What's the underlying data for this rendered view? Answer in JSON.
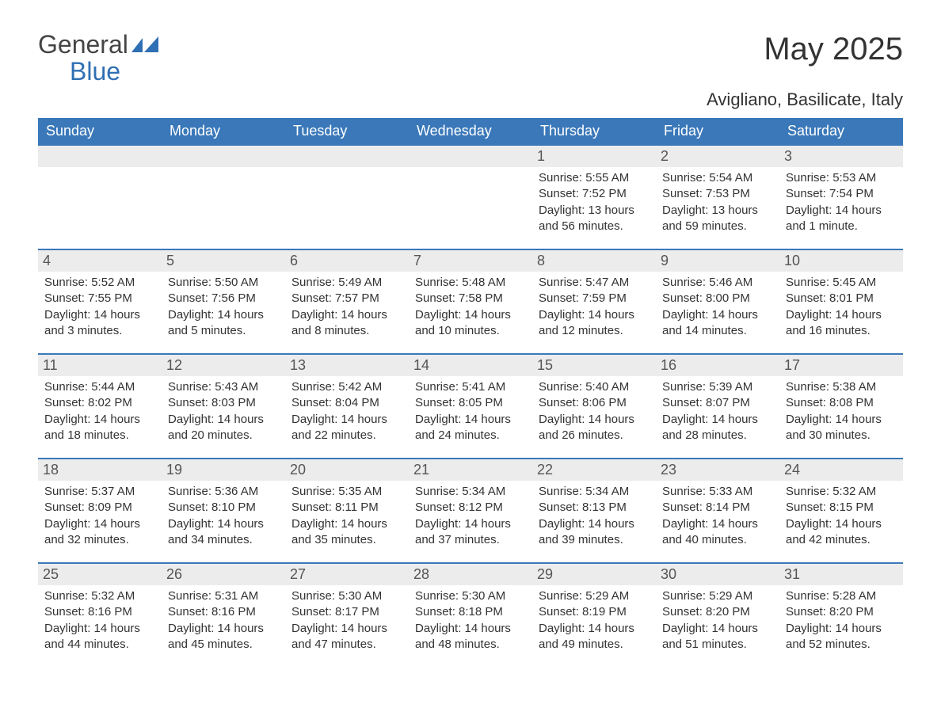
{
  "logo": {
    "general": "General",
    "blue": "Blue"
  },
  "title": "May 2025",
  "location": "Avigliano, Basilicate, Italy",
  "colors": {
    "header_bg": "#3a78b9",
    "header_text": "#ffffff",
    "daynum_bg": "#ececec",
    "body_text": "#333333",
    "accent_blue": "#2f6fb3"
  },
  "day_names": [
    "Sunday",
    "Monday",
    "Tuesday",
    "Wednesday",
    "Thursday",
    "Friday",
    "Saturday"
  ],
  "weeks": [
    [
      {
        "n": "",
        "sunrise": "",
        "sunset": "",
        "daylight": ""
      },
      {
        "n": "",
        "sunrise": "",
        "sunset": "",
        "daylight": ""
      },
      {
        "n": "",
        "sunrise": "",
        "sunset": "",
        "daylight": ""
      },
      {
        "n": "",
        "sunrise": "",
        "sunset": "",
        "daylight": ""
      },
      {
        "n": "1",
        "sunrise": "Sunrise: 5:55 AM",
        "sunset": "Sunset: 7:52 PM",
        "daylight": "Daylight: 13 hours and 56 minutes."
      },
      {
        "n": "2",
        "sunrise": "Sunrise: 5:54 AM",
        "sunset": "Sunset: 7:53 PM",
        "daylight": "Daylight: 13 hours and 59 minutes."
      },
      {
        "n": "3",
        "sunrise": "Sunrise: 5:53 AM",
        "sunset": "Sunset: 7:54 PM",
        "daylight": "Daylight: 14 hours and 1 minute."
      }
    ],
    [
      {
        "n": "4",
        "sunrise": "Sunrise: 5:52 AM",
        "sunset": "Sunset: 7:55 PM",
        "daylight": "Daylight: 14 hours and 3 minutes."
      },
      {
        "n": "5",
        "sunrise": "Sunrise: 5:50 AM",
        "sunset": "Sunset: 7:56 PM",
        "daylight": "Daylight: 14 hours and 5 minutes."
      },
      {
        "n": "6",
        "sunrise": "Sunrise: 5:49 AM",
        "sunset": "Sunset: 7:57 PM",
        "daylight": "Daylight: 14 hours and 8 minutes."
      },
      {
        "n": "7",
        "sunrise": "Sunrise: 5:48 AM",
        "sunset": "Sunset: 7:58 PM",
        "daylight": "Daylight: 14 hours and 10 minutes."
      },
      {
        "n": "8",
        "sunrise": "Sunrise: 5:47 AM",
        "sunset": "Sunset: 7:59 PM",
        "daylight": "Daylight: 14 hours and 12 minutes."
      },
      {
        "n": "9",
        "sunrise": "Sunrise: 5:46 AM",
        "sunset": "Sunset: 8:00 PM",
        "daylight": "Daylight: 14 hours and 14 minutes."
      },
      {
        "n": "10",
        "sunrise": "Sunrise: 5:45 AM",
        "sunset": "Sunset: 8:01 PM",
        "daylight": "Daylight: 14 hours and 16 minutes."
      }
    ],
    [
      {
        "n": "11",
        "sunrise": "Sunrise: 5:44 AM",
        "sunset": "Sunset: 8:02 PM",
        "daylight": "Daylight: 14 hours and 18 minutes."
      },
      {
        "n": "12",
        "sunrise": "Sunrise: 5:43 AM",
        "sunset": "Sunset: 8:03 PM",
        "daylight": "Daylight: 14 hours and 20 minutes."
      },
      {
        "n": "13",
        "sunrise": "Sunrise: 5:42 AM",
        "sunset": "Sunset: 8:04 PM",
        "daylight": "Daylight: 14 hours and 22 minutes."
      },
      {
        "n": "14",
        "sunrise": "Sunrise: 5:41 AM",
        "sunset": "Sunset: 8:05 PM",
        "daylight": "Daylight: 14 hours and 24 minutes."
      },
      {
        "n": "15",
        "sunrise": "Sunrise: 5:40 AM",
        "sunset": "Sunset: 8:06 PM",
        "daylight": "Daylight: 14 hours and 26 minutes."
      },
      {
        "n": "16",
        "sunrise": "Sunrise: 5:39 AM",
        "sunset": "Sunset: 8:07 PM",
        "daylight": "Daylight: 14 hours and 28 minutes."
      },
      {
        "n": "17",
        "sunrise": "Sunrise: 5:38 AM",
        "sunset": "Sunset: 8:08 PM",
        "daylight": "Daylight: 14 hours and 30 minutes."
      }
    ],
    [
      {
        "n": "18",
        "sunrise": "Sunrise: 5:37 AM",
        "sunset": "Sunset: 8:09 PM",
        "daylight": "Daylight: 14 hours and 32 minutes."
      },
      {
        "n": "19",
        "sunrise": "Sunrise: 5:36 AM",
        "sunset": "Sunset: 8:10 PM",
        "daylight": "Daylight: 14 hours and 34 minutes."
      },
      {
        "n": "20",
        "sunrise": "Sunrise: 5:35 AM",
        "sunset": "Sunset: 8:11 PM",
        "daylight": "Daylight: 14 hours and 35 minutes."
      },
      {
        "n": "21",
        "sunrise": "Sunrise: 5:34 AM",
        "sunset": "Sunset: 8:12 PM",
        "daylight": "Daylight: 14 hours and 37 minutes."
      },
      {
        "n": "22",
        "sunrise": "Sunrise: 5:34 AM",
        "sunset": "Sunset: 8:13 PM",
        "daylight": "Daylight: 14 hours and 39 minutes."
      },
      {
        "n": "23",
        "sunrise": "Sunrise: 5:33 AM",
        "sunset": "Sunset: 8:14 PM",
        "daylight": "Daylight: 14 hours and 40 minutes."
      },
      {
        "n": "24",
        "sunrise": "Sunrise: 5:32 AM",
        "sunset": "Sunset: 8:15 PM",
        "daylight": "Daylight: 14 hours and 42 minutes."
      }
    ],
    [
      {
        "n": "25",
        "sunrise": "Sunrise: 5:32 AM",
        "sunset": "Sunset: 8:16 PM",
        "daylight": "Daylight: 14 hours and 44 minutes."
      },
      {
        "n": "26",
        "sunrise": "Sunrise: 5:31 AM",
        "sunset": "Sunset: 8:16 PM",
        "daylight": "Daylight: 14 hours and 45 minutes."
      },
      {
        "n": "27",
        "sunrise": "Sunrise: 5:30 AM",
        "sunset": "Sunset: 8:17 PM",
        "daylight": "Daylight: 14 hours and 47 minutes."
      },
      {
        "n": "28",
        "sunrise": "Sunrise: 5:30 AM",
        "sunset": "Sunset: 8:18 PM",
        "daylight": "Daylight: 14 hours and 48 minutes."
      },
      {
        "n": "29",
        "sunrise": "Sunrise: 5:29 AM",
        "sunset": "Sunset: 8:19 PM",
        "daylight": "Daylight: 14 hours and 49 minutes."
      },
      {
        "n": "30",
        "sunrise": "Sunrise: 5:29 AM",
        "sunset": "Sunset: 8:20 PM",
        "daylight": "Daylight: 14 hours and 51 minutes."
      },
      {
        "n": "31",
        "sunrise": "Sunrise: 5:28 AM",
        "sunset": "Sunset: 8:20 PM",
        "daylight": "Daylight: 14 hours and 52 minutes."
      }
    ]
  ]
}
